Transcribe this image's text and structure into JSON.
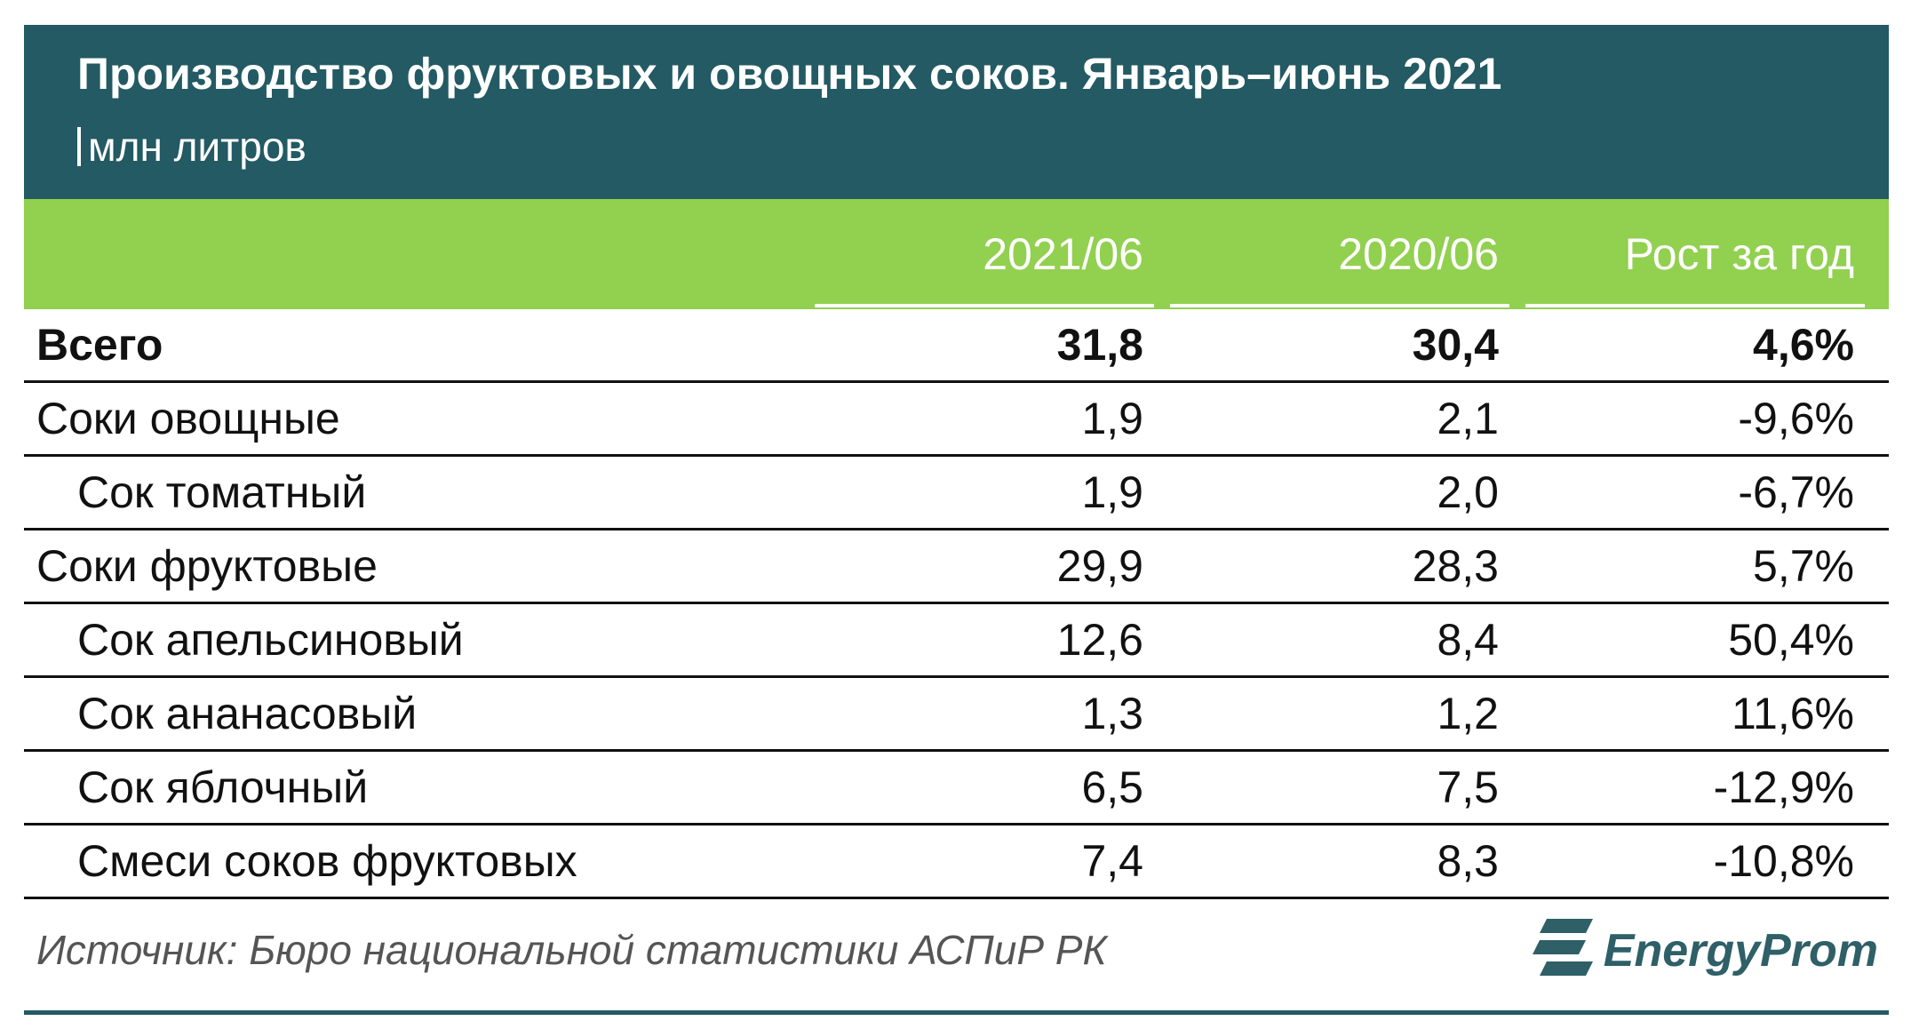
{
  "chart_data": {
    "type": "table",
    "title": "Производство фруктовых и овощных соков. Январь–июнь 2021",
    "subtitle": "млн литров",
    "columns": [
      "2021/06",
      "2020/06",
      "Рост за год"
    ],
    "rows": [
      {
        "name": "Всего",
        "v2021": "31,8",
        "v2020": "30,4",
        "growth": "4,6%"
      },
      {
        "name": "Соки овощные",
        "v2021": "1,9",
        "v2020": "2,1",
        "growth": "-9,6%"
      },
      {
        "name": "Сок томатный",
        "v2021": "1,9",
        "v2020": "2,0",
        "growth": "-6,7%"
      },
      {
        "name": "Соки фруктовые",
        "v2021": "29,9",
        "v2020": "28,3",
        "growth": "5,7%"
      },
      {
        "name": "Сок апельсиновый",
        "v2021": "12,6",
        "v2020": "8,4",
        "growth": "50,4%"
      },
      {
        "name": "Сок ананасовый",
        "v2021": "1,3",
        "v2020": "1,2",
        "growth": "11,6%"
      },
      {
        "name": "Сок яблочный",
        "v2021": "6,5",
        "v2020": "7,5",
        "growth": "-12,9%"
      },
      {
        "name": "Смеси соков фруктовых",
        "v2021": "7,4",
        "v2020": "8,3",
        "growth": "-10,8%"
      }
    ],
    "source": "Источник: Бюро национальной статистики АСПиР РК",
    "brand": "EnergyProm"
  },
  "colors": {
    "header_bg": "#235a63",
    "column_header_bg": "#92d050",
    "text": "#111111"
  }
}
